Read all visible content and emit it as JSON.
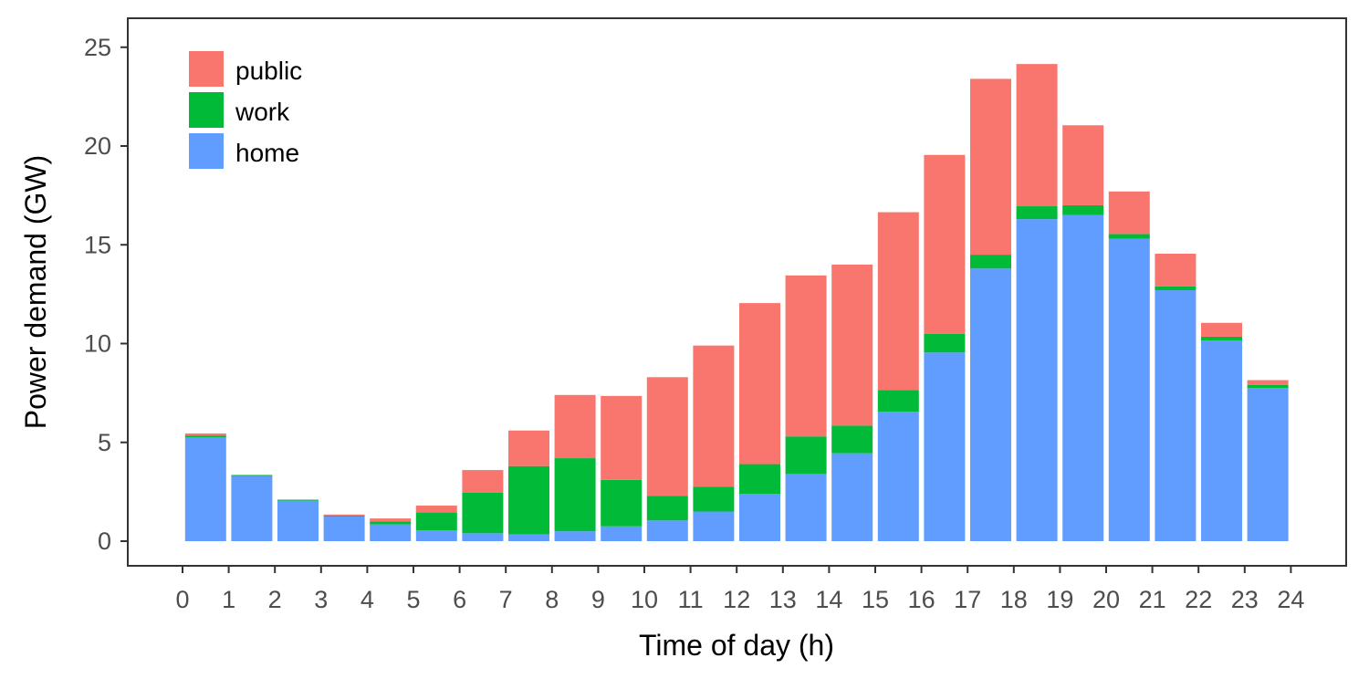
{
  "chart_data": {
    "type": "bar",
    "stacked": true,
    "xlabel": "Time of day (h)",
    "ylabel": "Power demand (GW)",
    "x_ticks": [
      "0",
      "1",
      "2",
      "3",
      "4",
      "5",
      "6",
      "7",
      "8",
      "9",
      "10",
      "11",
      "12",
      "13",
      "14",
      "15",
      "16",
      "17",
      "18",
      "19",
      "20",
      "21",
      "22",
      "23",
      "24"
    ],
    "y_ticks": [
      "0",
      "5",
      "10",
      "15",
      "20",
      "25"
    ],
    "xlim": [
      0,
      24
    ],
    "ylim": [
      -1.3,
      26
    ],
    "grid": false,
    "legend_position": "top-left",
    "x_centers": [
      0.5,
      1.5,
      2.5,
      3.5,
      4.5,
      5.5,
      6.5,
      7.5,
      8.5,
      9.5,
      10.5,
      11.5,
      12.5,
      13.5,
      14.5,
      15.5,
      16.5,
      17.5,
      18.5,
      19.5,
      20.5,
      21.5,
      22.5,
      23.5
    ],
    "series": [
      {
        "name": "home",
        "color": "#619CFF",
        "values": [
          5.25,
          3.3,
          2.05,
          1.25,
          0.85,
          0.55,
          0.4,
          0.35,
          0.5,
          0.75,
          1.05,
          1.5,
          2.4,
          3.4,
          4.45,
          6.55,
          9.55,
          13.8,
          16.3,
          16.5,
          15.3,
          12.7,
          10.15,
          7.75
        ]
      },
      {
        "name": "work",
        "color": "#00BA38",
        "values": [
          0.1,
          0.05,
          0.05,
          0.05,
          0.15,
          0.9,
          2.05,
          3.45,
          3.7,
          2.35,
          1.25,
          1.25,
          1.5,
          1.9,
          1.4,
          1.1,
          0.95,
          0.7,
          0.65,
          0.5,
          0.25,
          0.2,
          0.2,
          0.15
        ]
      },
      {
        "name": "public",
        "color": "#F8766D",
        "values": [
          0.1,
          0.0,
          0.0,
          0.05,
          0.15,
          0.35,
          1.15,
          1.8,
          3.2,
          4.25,
          6.0,
          7.15,
          8.15,
          8.15,
          8.15,
          9.0,
          9.05,
          8.9,
          7.2,
          4.05,
          2.15,
          1.65,
          0.7,
          0.25
        ]
      }
    ],
    "legend_order": [
      "public",
      "work",
      "home"
    ]
  }
}
